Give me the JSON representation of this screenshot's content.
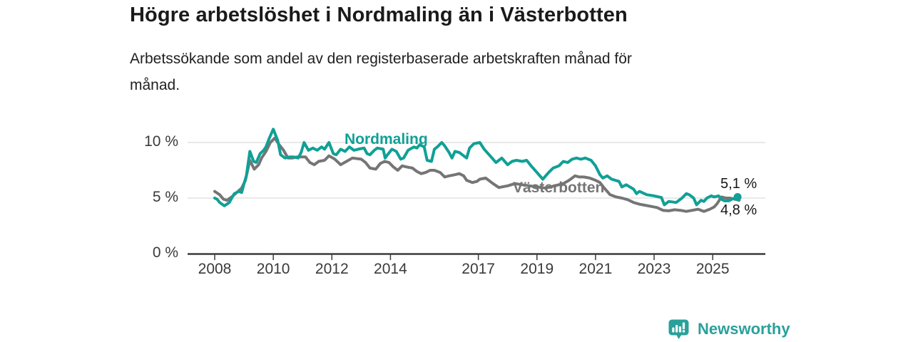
{
  "header": {
    "title": "Högre arbetslöshet i Nordmaling än i Västerbotten",
    "subtitle": "Arbetssökande som andel av den registerbaserade arbetskraften månad för månad.",
    "subtitle_lines": [
      "Arbetssökande som andel av den registerbaserade arbetskraften månad för",
      "månad."
    ]
  },
  "footer": {
    "brand": "Newsworthy",
    "logo_icon": "bar-chart-speech-bubble-icon"
  },
  "colors": {
    "accent_teal": "#10a096",
    "series_gray": "#757575",
    "brand_teal": "#2aa09b",
    "axis_text": "#3a3a3a",
    "grid_line": "#dcdcdc",
    "axis_line": "#3b3b3b",
    "title_text": "#1a1a1a",
    "value_text": "#161616"
  },
  "chart_data": {
    "type": "line",
    "title": "Högre arbetslöshet i Nordmaling än i Västerbotten",
    "subtitle": "Arbetssökande som andel av den registerbaserade arbetskraften månad för månad.",
    "xlabel": "",
    "ylabel": "",
    "unit": "%",
    "grid": "horizontal-only",
    "legend_position": "inline-labels-on-lines",
    "xlim": [
      2007.7,
      2026.4
    ],
    "ylim": [
      0,
      11.8
    ],
    "x_ticks": [
      2008,
      2010,
      2012,
      2014,
      2017,
      2019,
      2021,
      2023,
      2025
    ],
    "y_ticks": [
      {
        "value": 0,
        "label": "0 %"
      },
      {
        "value": 5,
        "label": "5 %"
      },
      {
        "value": 10,
        "label": "10 %"
      }
    ],
    "series": [
      {
        "name": "Nordmaling",
        "color": "#10a096",
        "end_label": "5,1 %",
        "end_value": 5.1,
        "end_dot": true,
        "points": [
          [
            2008,
            5
          ],
          [
            2008.08,
            4.9
          ],
          [
            2008.17,
            4.6
          ],
          [
            2008.33,
            4.3
          ],
          [
            2008.5,
            4.6
          ],
          [
            2008.58,
            5
          ],
          [
            2008.67,
            5.4
          ],
          [
            2008.83,
            5.6
          ],
          [
            2008.92,
            5.5
          ],
          [
            2009,
            6.3
          ],
          [
            2009.08,
            7
          ],
          [
            2009.2,
            9.2
          ],
          [
            2009.33,
            8.3
          ],
          [
            2009.42,
            8.2
          ],
          [
            2009.55,
            9
          ],
          [
            2009.67,
            9.3
          ],
          [
            2009.75,
            9.6
          ],
          [
            2009.85,
            10.3
          ],
          [
            2010,
            11.2
          ],
          [
            2010.15,
            10.2
          ],
          [
            2010.25,
            8.9
          ],
          [
            2010.4,
            8.6
          ],
          [
            2010.55,
            8.7
          ],
          [
            2010.7,
            8.7
          ],
          [
            2010.85,
            8.6
          ],
          [
            2010.95,
            9.1
          ],
          [
            2011.05,
            10
          ],
          [
            2011.2,
            9.3
          ],
          [
            2011.35,
            9.5
          ],
          [
            2011.5,
            9.3
          ],
          [
            2011.65,
            9.6
          ],
          [
            2011.75,
            9.4
          ],
          [
            2011.9,
            10
          ],
          [
            2012.05,
            9
          ],
          [
            2012.15,
            8.9
          ],
          [
            2012.3,
            9.4
          ],
          [
            2012.45,
            9.2
          ],
          [
            2012.6,
            9.6
          ],
          [
            2012.75,
            9.3
          ],
          [
            2012.9,
            9.4
          ],
          [
            2013.1,
            9.5
          ],
          [
            2013.2,
            9
          ],
          [
            2013.3,
            8.9
          ],
          [
            2013.45,
            9.3
          ],
          [
            2013.55,
            9.5
          ],
          [
            2013.75,
            9.4
          ],
          [
            2013.82,
            8.6
          ],
          [
            2013.9,
            8.9
          ],
          [
            2014.05,
            9.4
          ],
          [
            2014.2,
            9.2
          ],
          [
            2014.35,
            8.5
          ],
          [
            2014.45,
            8.6
          ],
          [
            2014.6,
            9.3
          ],
          [
            2014.8,
            9.6
          ],
          [
            2014.9,
            9.5
          ],
          [
            2015,
            9.8
          ],
          [
            2015.15,
            9.6
          ],
          [
            2015.25,
            8.4
          ],
          [
            2015.4,
            8.3
          ],
          [
            2015.5,
            9.4
          ],
          [
            2015.6,
            9.6
          ],
          [
            2015.75,
            10
          ],
          [
            2015.85,
            9.7
          ],
          [
            2016,
            9.1
          ],
          [
            2016.1,
            8.6
          ],
          [
            2016.2,
            9.2
          ],
          [
            2016.35,
            9.1
          ],
          [
            2016.5,
            8.8
          ],
          [
            2016.6,
            8.6
          ],
          [
            2016.7,
            9.5
          ],
          [
            2016.85,
            9.9
          ],
          [
            2017.05,
            10
          ],
          [
            2017.2,
            9.4
          ],
          [
            2017.4,
            8.8
          ],
          [
            2017.6,
            8.2
          ],
          [
            2017.7,
            8.4
          ],
          [
            2017.8,
            8.6
          ],
          [
            2017.9,
            8.3
          ],
          [
            2018,
            8
          ],
          [
            2018.15,
            8.3
          ],
          [
            2018.3,
            8.4
          ],
          [
            2018.5,
            8.3
          ],
          [
            2018.65,
            8.4
          ],
          [
            2018.8,
            7.9
          ],
          [
            2018.9,
            7.6
          ],
          [
            2019,
            7.3
          ],
          [
            2019.2,
            6.7
          ],
          [
            2019.4,
            7.3
          ],
          [
            2019.55,
            7.7
          ],
          [
            2019.75,
            7.9
          ],
          [
            2019.9,
            8.3
          ],
          [
            2020.05,
            8.2
          ],
          [
            2020.2,
            8.5
          ],
          [
            2020.35,
            8.6
          ],
          [
            2020.5,
            8.5
          ],
          [
            2020.65,
            8.6
          ],
          [
            2020.85,
            8.4
          ],
          [
            2021,
            7.9
          ],
          [
            2021.15,
            7.1
          ],
          [
            2021.25,
            6.8
          ],
          [
            2021.4,
            7
          ],
          [
            2021.55,
            6.7
          ],
          [
            2021.8,
            6.5
          ],
          [
            2021.9,
            6
          ],
          [
            2022.05,
            6.2
          ],
          [
            2022.3,
            5.8
          ],
          [
            2022.4,
            5.4
          ],
          [
            2022.5,
            5.6
          ],
          [
            2022.75,
            5.3
          ],
          [
            2023,
            5.2
          ],
          [
            2023.25,
            5.05
          ],
          [
            2023.35,
            4.4
          ],
          [
            2023.5,
            4.7
          ],
          [
            2023.75,
            4.6
          ],
          [
            2023.95,
            5
          ],
          [
            2024.1,
            5.4
          ],
          [
            2024.2,
            5.3
          ],
          [
            2024.35,
            5
          ],
          [
            2024.45,
            4.4
          ],
          [
            2024.6,
            4.8
          ],
          [
            2024.7,
            4.7
          ],
          [
            2024.8,
            5
          ],
          [
            2024.95,
            5.2
          ],
          [
            2025.05,
            5.1
          ],
          [
            2025.2,
            5.2
          ],
          [
            2025.3,
            4.9
          ],
          [
            2025.4,
            4.75
          ],
          [
            2025.55,
            4.75
          ],
          [
            2025.65,
            4.9
          ],
          [
            2025.85,
            5.1
          ]
        ]
      },
      {
        "name": "Västerbotten",
        "color": "#757575",
        "end_label": "4,8 %",
        "end_value": 4.8,
        "end_dot": false,
        "points": [
          [
            2008,
            5.6
          ],
          [
            2008.17,
            5.3
          ],
          [
            2008.3,
            4.9
          ],
          [
            2008.42,
            4.8
          ],
          [
            2008.58,
            5.1
          ],
          [
            2008.75,
            5.5
          ],
          [
            2008.92,
            5.9
          ],
          [
            2009.05,
            6.6
          ],
          [
            2009.2,
            8.4
          ],
          [
            2009.35,
            7.6
          ],
          [
            2009.5,
            8
          ],
          [
            2009.6,
            8.6
          ],
          [
            2009.75,
            9.2
          ],
          [
            2009.9,
            10
          ],
          [
            2010.05,
            10.4
          ],
          [
            2010.2,
            9.8
          ],
          [
            2010.35,
            9.3
          ],
          [
            2010.5,
            8.6
          ],
          [
            2010.65,
            8.6
          ],
          [
            2010.8,
            8.7
          ],
          [
            2010.95,
            8.7
          ],
          [
            2011.1,
            8.7
          ],
          [
            2011.25,
            8.2
          ],
          [
            2011.4,
            8
          ],
          [
            2011.55,
            8.3
          ],
          [
            2011.75,
            8.4
          ],
          [
            2011.9,
            8.8
          ],
          [
            2012.1,
            8.5
          ],
          [
            2012.3,
            8
          ],
          [
            2012.5,
            8.3
          ],
          [
            2012.7,
            8.6
          ],
          [
            2013,
            8.5
          ],
          [
            2013.15,
            8.2
          ],
          [
            2013.3,
            7.7
          ],
          [
            2013.5,
            7.6
          ],
          [
            2013.65,
            8.1
          ],
          [
            2013.8,
            8.3
          ],
          [
            2013.95,
            8.2
          ],
          [
            2014.1,
            7.8
          ],
          [
            2014.25,
            7.5
          ],
          [
            2014.4,
            7.9
          ],
          [
            2014.55,
            7.8
          ],
          [
            2014.75,
            7.7
          ],
          [
            2014.9,
            7.4
          ],
          [
            2015.05,
            7.2
          ],
          [
            2015.2,
            7.3
          ],
          [
            2015.35,
            7.5
          ],
          [
            2015.5,
            7.5
          ],
          [
            2015.7,
            7.3
          ],
          [
            2015.85,
            6.9
          ],
          [
            2016,
            7
          ],
          [
            2016.2,
            7.1
          ],
          [
            2016.35,
            7.2
          ],
          [
            2016.5,
            7
          ],
          [
            2016.6,
            6.6
          ],
          [
            2016.8,
            6.4
          ],
          [
            2016.95,
            6.5
          ],
          [
            2017.05,
            6.7
          ],
          [
            2017.25,
            6.8
          ],
          [
            2017.5,
            6.3
          ],
          [
            2017.7,
            5.95
          ],
          [
            2018,
            6.1
          ],
          [
            2018.25,
            6.3
          ],
          [
            2018.5,
            6.2
          ],
          [
            2018.75,
            6.1
          ],
          [
            2019,
            6
          ],
          [
            2019.3,
            5.9
          ],
          [
            2019.6,
            6.1
          ],
          [
            2019.9,
            6.3
          ],
          [
            2020.1,
            6.6
          ],
          [
            2020.3,
            7
          ],
          [
            2020.45,
            6.9
          ],
          [
            2020.6,
            6.9
          ],
          [
            2020.8,
            6.8
          ],
          [
            2021,
            6.6
          ],
          [
            2021.15,
            6.4
          ],
          [
            2021.3,
            5.9
          ],
          [
            2021.5,
            5.3
          ],
          [
            2021.7,
            5.1
          ],
          [
            2021.9,
            5
          ],
          [
            2022.1,
            4.85
          ],
          [
            2022.3,
            4.6
          ],
          [
            2022.5,
            4.45
          ],
          [
            2022.7,
            4.35
          ],
          [
            2022.9,
            4.25
          ],
          [
            2023.1,
            4.15
          ],
          [
            2023.3,
            3.9
          ],
          [
            2023.5,
            3.85
          ],
          [
            2023.7,
            3.95
          ],
          [
            2023.9,
            3.9
          ],
          [
            2024.1,
            3.8
          ],
          [
            2024.3,
            3.9
          ],
          [
            2024.5,
            4
          ],
          [
            2024.7,
            3.8
          ],
          [
            2024.9,
            4
          ],
          [
            2025.05,
            4.2
          ],
          [
            2025.15,
            4.5
          ],
          [
            2025.3,
            5.1
          ],
          [
            2025.45,
            5
          ],
          [
            2025.6,
            5
          ],
          [
            2025.75,
            4.9
          ],
          [
            2025.9,
            4.8
          ]
        ]
      }
    ]
  }
}
